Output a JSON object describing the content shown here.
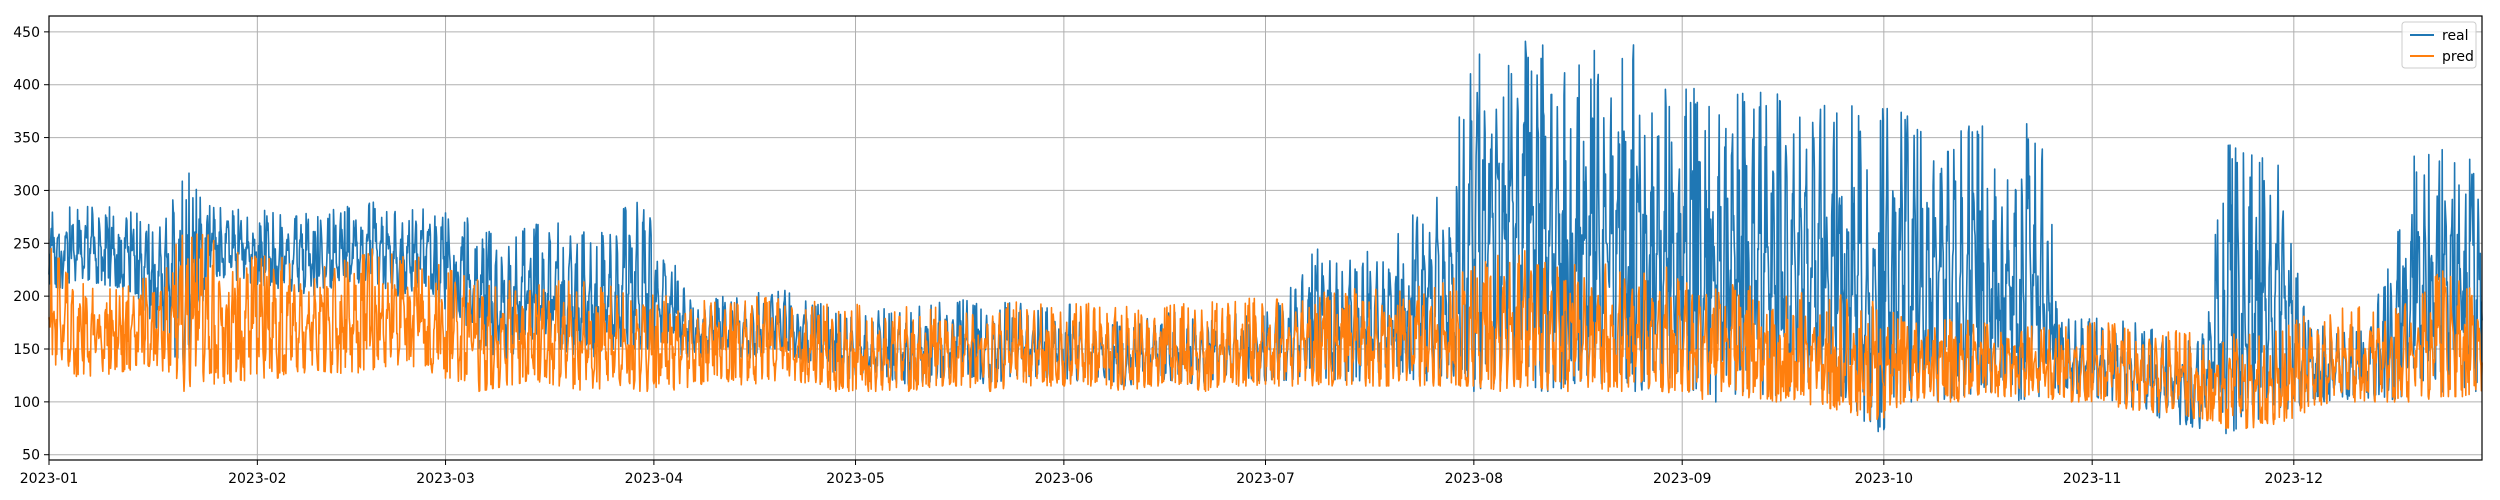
{
  "chart_data": {
    "type": "line",
    "title": "",
    "xlabel": "",
    "ylabel": "",
    "x_start": "2023-01-01",
    "x_end": "2023-12-29",
    "ylim": [
      45,
      465
    ],
    "grid": true,
    "legend_position": "top-right",
    "x_ticks": [
      "2023-01",
      "2023-02",
      "2023-03",
      "2023-04",
      "2023-05",
      "2023-06",
      "2023-07",
      "2023-08",
      "2023-09",
      "2023-10",
      "2023-11",
      "2023-12"
    ],
    "y_ticks": [
      50,
      100,
      150,
      200,
      250,
      300,
      350,
      400,
      450
    ],
    "series": [
      {
        "name": "real",
        "color": "#1f77b4",
        "x": [
          "2023-01-01",
          "2023-01-05",
          "2023-01-09",
          "2023-01-13",
          "2023-01-17",
          "2023-01-21",
          "2023-01-25",
          "2023-01-29",
          "2023-02-02",
          "2023-02-06",
          "2023-02-10",
          "2023-02-14",
          "2023-02-18",
          "2023-02-22",
          "2023-02-26",
          "2023-03-02",
          "2023-03-06",
          "2023-03-10",
          "2023-03-14",
          "2023-03-18",
          "2023-03-22",
          "2023-03-26",
          "2023-03-30",
          "2023-04-03",
          "2023-04-07",
          "2023-04-11",
          "2023-04-15",
          "2023-04-19",
          "2023-04-23",
          "2023-04-27",
          "2023-05-01",
          "2023-05-05",
          "2023-05-09",
          "2023-05-13",
          "2023-05-17",
          "2023-05-21",
          "2023-05-25",
          "2023-05-29",
          "2023-06-02",
          "2023-06-06",
          "2023-06-10",
          "2023-06-14",
          "2023-06-18",
          "2023-06-22",
          "2023-06-26",
          "2023-06-30",
          "2023-07-04",
          "2023-07-08",
          "2023-07-12",
          "2023-07-16",
          "2023-07-20",
          "2023-07-24",
          "2023-07-28",
          "2023-08-01",
          "2023-08-05",
          "2023-08-09",
          "2023-08-13",
          "2023-08-17",
          "2023-08-21",
          "2023-08-25",
          "2023-08-29",
          "2023-09-02",
          "2023-09-06",
          "2023-09-10",
          "2023-09-14",
          "2023-09-18",
          "2023-09-22",
          "2023-09-26",
          "2023-09-30",
          "2023-10-04",
          "2023-10-08",
          "2023-10-12",
          "2023-10-16",
          "2023-10-20",
          "2023-10-24",
          "2023-10-28",
          "2023-11-01",
          "2023-11-05",
          "2023-11-09",
          "2023-11-13",
          "2023-11-17",
          "2023-11-21",
          "2023-11-25",
          "2023-11-29",
          "2023-12-03",
          "2023-12-07",
          "2023-12-11",
          "2023-12-15",
          "2023-12-19",
          "2023-12-23",
          "2023-12-27"
        ],
        "low": [
          200,
          215,
          210,
          205,
          170,
          130,
          220,
          215,
          210,
          205,
          200,
          210,
          215,
          200,
          210,
          180,
          150,
          140,
          160,
          150,
          140,
          150,
          150,
          150,
          140,
          150,
          140,
          150,
          140,
          130,
          120,
          120,
          115,
          120,
          125,
          115,
          125,
          120,
          120,
          120,
          115,
          120,
          120,
          115,
          125,
          120,
          120,
          125,
          120,
          120,
          125,
          120,
          120,
          110,
          120,
          110,
          110,
          120,
          115,
          110,
          115,
          110,
          100,
          110,
          105,
          110,
          105,
          100,
          65,
          100,
          100,
          105,
          110,
          100,
          105,
          110,
          105,
          100,
          90,
          80,
          75,
          70,
          80,
          85,
          100,
          100,
          105,
          100,
          110,
          105,
          110
        ],
        "high": [
          290,
          285,
          290,
          285,
          270,
          325,
          290,
          285,
          285,
          280,
          280,
          285,
          290,
          280,
          285,
          285,
          270,
          265,
          270,
          270,
          265,
          270,
          310,
          250,
          190,
          200,
          200,
          210,
          200,
          190,
          180,
          190,
          185,
          200,
          200,
          190,
          200,
          190,
          195,
          180,
          175,
          180,
          190,
          175,
          185,
          180,
          200,
          245,
          250,
          250,
          250,
          300,
          310,
          440,
          440,
          445,
          435,
          440,
          430,
          445,
          400,
          400,
          400,
          400,
          395,
          390,
          395,
          390,
          380,
          375,
          370,
          370,
          365,
          360,
          370,
          180,
          180,
          185,
          170,
          165,
          160,
          345,
          335,
          340,
          180,
          175,
          170,
          230,
          335,
          340,
          330
        ]
      },
      {
        "name": "pred",
        "color": "#ff7f0e",
        "x": [
          "2023-01-01",
          "2023-01-05",
          "2023-01-09",
          "2023-01-13",
          "2023-01-17",
          "2023-01-21",
          "2023-01-25",
          "2023-01-29",
          "2023-02-02",
          "2023-02-06",
          "2023-02-10",
          "2023-02-14",
          "2023-02-18",
          "2023-02-22",
          "2023-02-26",
          "2023-03-02",
          "2023-03-06",
          "2023-03-10",
          "2023-03-14",
          "2023-03-18",
          "2023-03-22",
          "2023-03-26",
          "2023-03-30",
          "2023-04-03",
          "2023-04-07",
          "2023-04-11",
          "2023-04-15",
          "2023-04-19",
          "2023-04-23",
          "2023-04-27",
          "2023-05-01",
          "2023-05-05",
          "2023-05-09",
          "2023-05-13",
          "2023-05-17",
          "2023-05-21",
          "2023-05-25",
          "2023-05-29",
          "2023-06-02",
          "2023-06-06",
          "2023-06-10",
          "2023-06-14",
          "2023-06-18",
          "2023-06-22",
          "2023-06-26",
          "2023-06-30",
          "2023-07-04",
          "2023-07-08",
          "2023-07-12",
          "2023-07-16",
          "2023-07-20",
          "2023-07-24",
          "2023-07-28",
          "2023-08-01",
          "2023-08-05",
          "2023-08-09",
          "2023-08-13",
          "2023-08-17",
          "2023-08-21",
          "2023-08-25",
          "2023-08-29",
          "2023-09-02",
          "2023-09-06",
          "2023-09-10",
          "2023-09-14",
          "2023-09-18",
          "2023-09-22",
          "2023-09-26",
          "2023-09-30",
          "2023-10-04",
          "2023-10-08",
          "2023-10-12",
          "2023-10-16",
          "2023-10-20",
          "2023-10-24",
          "2023-10-28",
          "2023-11-01",
          "2023-11-05",
          "2023-11-09",
          "2023-11-13",
          "2023-11-17",
          "2023-11-21",
          "2023-11-25",
          "2023-11-29",
          "2023-12-03",
          "2023-12-07",
          "2023-12-11",
          "2023-12-15",
          "2023-12-19",
          "2023-12-23",
          "2023-12-27"
        ],
        "low": [
          140,
          120,
          125,
          130,
          135,
          110,
          115,
          120,
          120,
          125,
          130,
          125,
          130,
          135,
          130,
          120,
          110,
          115,
          120,
          115,
          110,
          115,
          110,
          110,
          115,
          120,
          115,
          120,
          115,
          110,
          110,
          110,
          110,
          115,
          115,
          110,
          115,
          115,
          115,
          115,
          110,
          115,
          115,
          110,
          115,
          115,
          115,
          115,
          115,
          115,
          115,
          115,
          115,
          115,
          110,
          115,
          110,
          110,
          110,
          110,
          110,
          105,
          100,
          105,
          100,
          100,
          95,
          90,
          80,
          100,
          100,
          100,
          105,
          105,
          105,
          100,
          100,
          95,
          90,
          90,
          80,
          75,
          75,
          80,
          90,
          100,
          100,
          100,
          100,
          105,
          105
        ],
        "high": [
          250,
          215,
          210,
          215,
          220,
          265,
          265,
          250,
          240,
          235,
          235,
          240,
          245,
          240,
          240,
          225,
          215,
          220,
          215,
          215,
          215,
          210,
          210,
          200,
          200,
          200,
          200,
          200,
          195,
          195,
          195,
          190,
          190,
          195,
          195,
          190,
          195,
          195,
          195,
          195,
          190,
          195,
          195,
          195,
          200,
          200,
          200,
          205,
          205,
          210,
          210,
          210,
          215,
          230,
          240,
          245,
          245,
          235,
          230,
          230,
          230,
          215,
          215,
          210,
          210,
          205,
          200,
          205,
          195,
          180,
          180,
          180,
          175,
          175,
          175,
          175,
          175,
          175,
          170,
          170,
          165,
          165,
          165,
          170,
          185,
          190,
          190,
          190,
          200,
          225,
          210
        ]
      }
    ]
  }
}
